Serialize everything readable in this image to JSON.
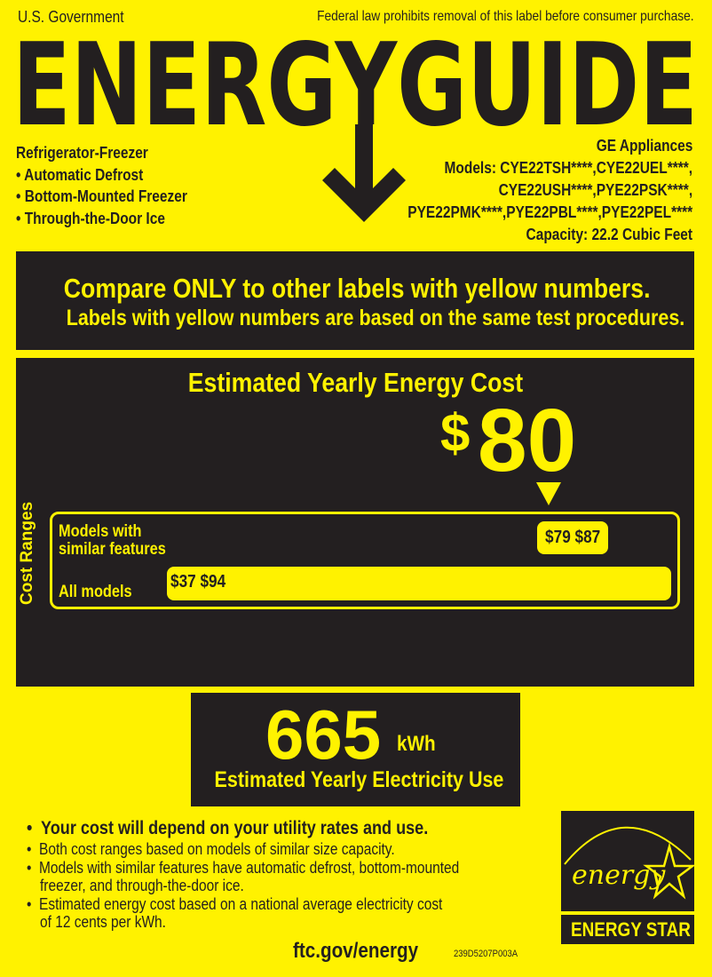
{
  "header": {
    "government": "U.S. Government",
    "notice": "Federal law prohibits removal of this label before consumer purchase.",
    "logo_text": "ENERGYGUIDE"
  },
  "product": {
    "type": "Refrigerator-Freezer",
    "features": [
      "• Automatic Defrost",
      "• Bottom-Mounted Freezer",
      "• Through-the-Door Ice"
    ]
  },
  "manufacturer": {
    "name": "GE Appliances",
    "model_lines": [
      "Models: CYE22TSH****,CYE22UEL****,",
      "CYE22USH****,PYE22PSK****,",
      "PYE22PMK****,PYE22PBL****,PYE22PEL****"
    ],
    "capacity": "Capacity: 22.2 Cubic Feet"
  },
  "compare": {
    "line1": "Compare ONLY to other labels with yellow numbers.",
    "line2": "Labels with yellow numbers are based on the same test procedures."
  },
  "cost": {
    "title": "Estimated Yearly Energy Cost",
    "currency": "$",
    "value": "80",
    "ranges_label": "Cost Ranges",
    "similar": {
      "label_line1": "Models with",
      "label_line2": "similar features",
      "low": "$79",
      "high": "$87"
    },
    "all": {
      "label": "All models",
      "low": "$37",
      "high": "$94"
    }
  },
  "electricity": {
    "value": "665",
    "unit": "kWh",
    "label": "Estimated Yearly Electricity Use"
  },
  "notes": {
    "main": "Your cost will depend on your utility rates and use.",
    "bullets": [
      "Both cost ranges based on models of similar size capacity.",
      "Models with similar features have automatic defrost, bottom-mounted",
      "freezer, and through-the-door ice.",
      "Estimated energy cost based on a national average electricity cost",
      "of 12 cents per kWh."
    ]
  },
  "footer": {
    "url": "ftc.gov/energy",
    "code": "239D5207P003A"
  },
  "energy_star": {
    "script": "energy",
    "label": "ENERGY STAR"
  },
  "colors": {
    "yellow": "#fff200",
    "dark": "#231f20"
  }
}
